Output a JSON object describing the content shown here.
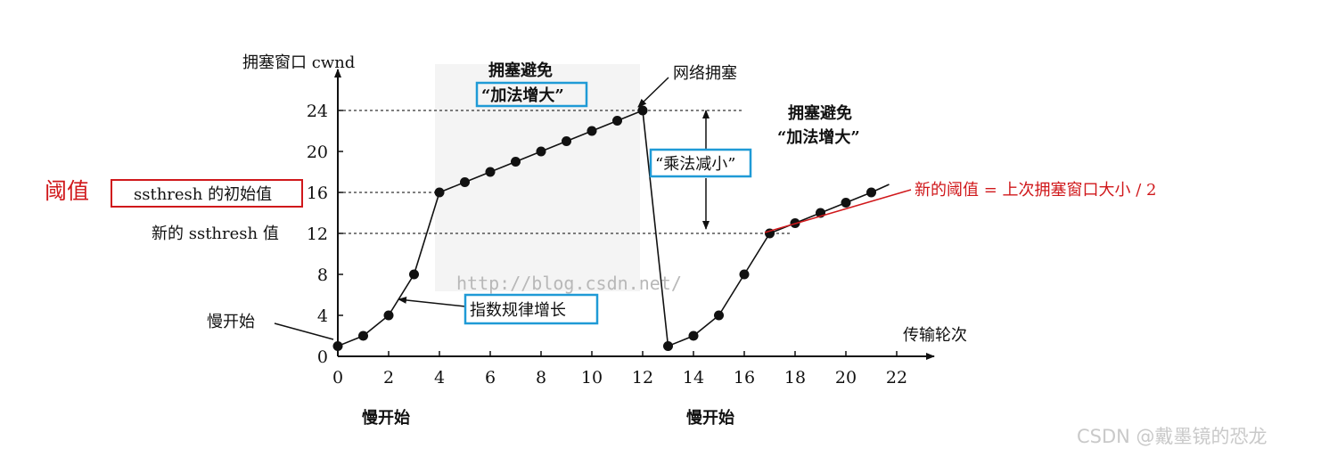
{
  "chart_data": {
    "type": "line",
    "y_axis_label": "拥塞窗口 cwnd",
    "x_axis_label": "传输轮次",
    "x_ticks": [
      0,
      2,
      4,
      6,
      8,
      10,
      12,
      14,
      16,
      18,
      20,
      22
    ],
    "y_ticks": [
      0,
      4,
      8,
      12,
      16,
      20,
      24
    ],
    "xlim": [
      0,
      22
    ],
    "ylim": [
      0,
      24
    ],
    "series": [
      {
        "points": [
          [
            0,
            1
          ],
          [
            1,
            2
          ],
          [
            2,
            4
          ],
          [
            3,
            8
          ],
          [
            4,
            16
          ],
          [
            5,
            17
          ],
          [
            6,
            18
          ],
          [
            7,
            19
          ],
          [
            8,
            20
          ],
          [
            9,
            21
          ],
          [
            10,
            22
          ],
          [
            11,
            23
          ],
          [
            12,
            24
          ],
          [
            13,
            1
          ],
          [
            14,
            2
          ],
          [
            15,
            4
          ],
          [
            16,
            8
          ],
          [
            17,
            12
          ],
          [
            18,
            13
          ],
          [
            19,
            14
          ],
          [
            20,
            15
          ],
          [
            21,
            16
          ]
        ]
      }
    ],
    "reference_lines": [
      24,
      16,
      12
    ],
    "annotations": {
      "threshold_red": "阈值",
      "ssthresh_initial": "ssthresh 的初始值",
      "ssthresh_new": "新的 ssthresh 值",
      "slow_start_left": "慢开始",
      "ca_1_title": "拥塞避免",
      "ca_1_sub": "“加法增大”",
      "congestion": "网络拥塞",
      "multiplicative": "“乘法减小”",
      "ca_2_title": "拥塞避免",
      "ca_2_sub": "“加法增大”",
      "exponential": "指数规律增长",
      "new_threshold_note": "新的阈值 = 上次拥塞窗口大小 / 2",
      "bottom_slow_start_1": "慢开始",
      "bottom_slow_start_2": "慢开始",
      "watermark": "http://blog.csdn.net/",
      "credit": "CSDN @戴墨镜的恐龙"
    },
    "colors": {
      "highlight_box": "#1f9ad6",
      "red": "#d0181b",
      "line": "#111111"
    }
  }
}
